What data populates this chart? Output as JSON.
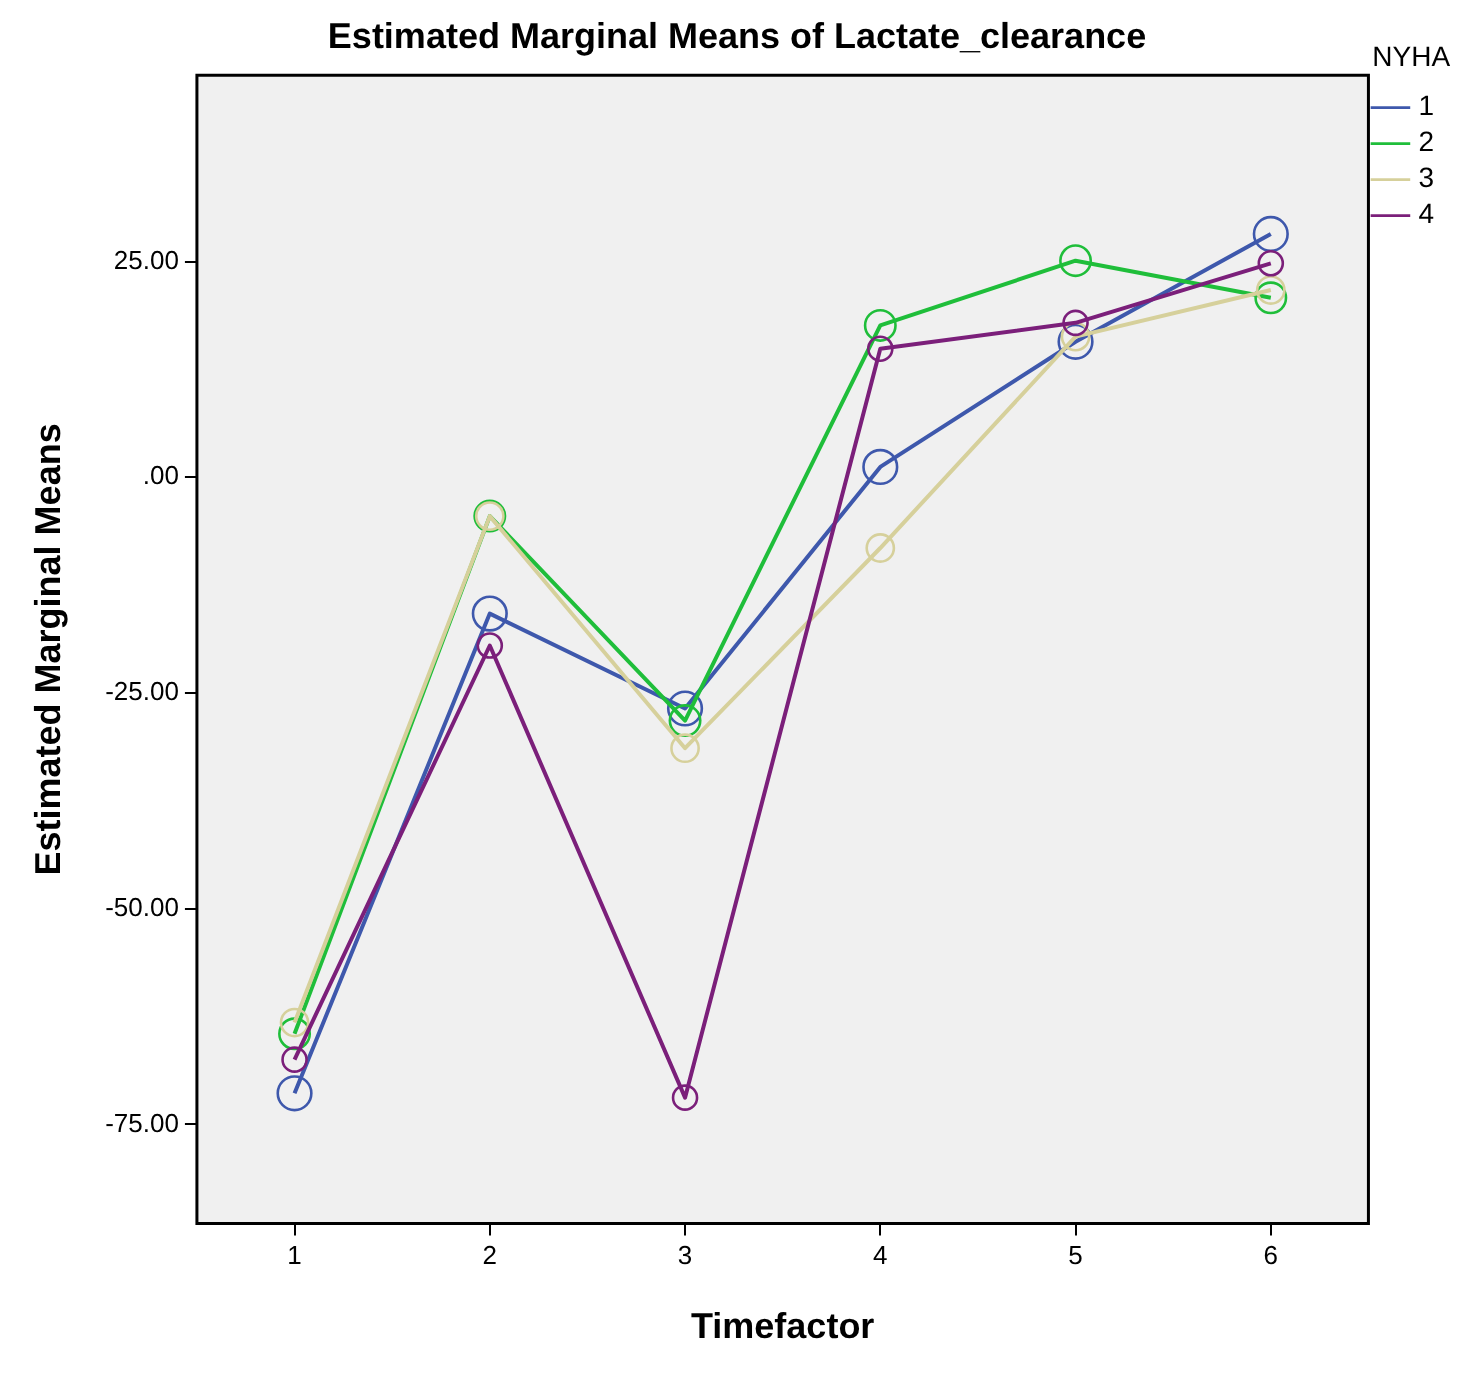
{
  "chart_data": {
    "type": "line",
    "title": "Estimated Marginal Means of Lactate_clearance",
    "xlabel": "Timefactor",
    "ylabel": "Estimated Marginal Means",
    "legend_title": "NYHA",
    "categories": [
      "1",
      "2",
      "3",
      "4",
      "5",
      "6"
    ],
    "ylim": [
      -86.5,
      46.6
    ],
    "yticks": [
      {
        "value": -75,
        "label": "-75.00"
      },
      {
        "value": -50,
        "label": "-50.00"
      },
      {
        "value": -25,
        "label": "-25.00"
      },
      {
        "value": 0,
        "label": ".00"
      },
      {
        "value": 25,
        "label": "25.00"
      }
    ],
    "legend": "right",
    "marker": "circle",
    "line_style": "solid",
    "series": [
      {
        "name": "1",
        "color": "#3e58ac",
        "values": [
          -71.4,
          -15.8,
          -26.8,
          1.2,
          15.7,
          28.2
        ]
      },
      {
        "name": "2",
        "color": "#1fbe3a",
        "values": [
          -64.5,
          -4.5,
          -28.2,
          17.6,
          25.1,
          20.8
        ]
      },
      {
        "name": "3",
        "color": "#d6d09b",
        "values": [
          -63.2,
          -4.5,
          -31.4,
          -8.2,
          16.3,
          21.7
        ]
      },
      {
        "name": "4",
        "color": "#7b1f7a",
        "values": [
          -67.5,
          -19.5,
          -71.9,
          14.9,
          17.9,
          24.8
        ]
      }
    ]
  }
}
